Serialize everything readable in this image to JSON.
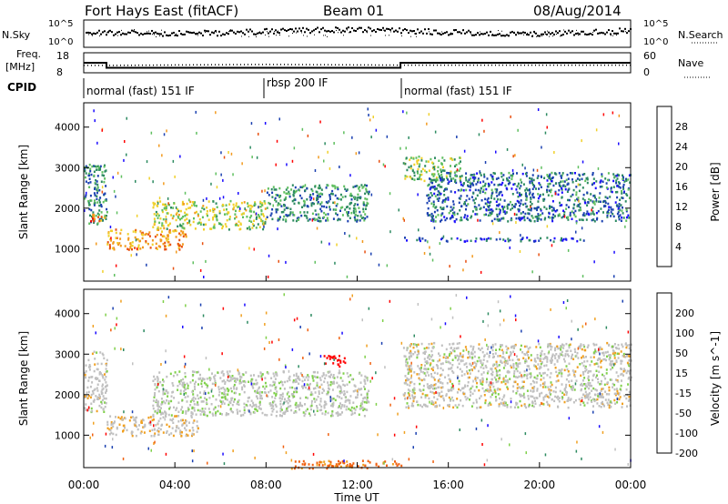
{
  "header": {
    "title": "Fort Hays East (fitACF)",
    "beam": "Beam 01",
    "date": "08/Aug/2014"
  },
  "noise_panel": {
    "left_label": "N.Sky",
    "left_ticks": [
      "10^5",
      "10^0"
    ],
    "right_label": "N.Search",
    "right_ticks": [
      "10^5",
      "10^0"
    ]
  },
  "freq_panel": {
    "left_label_1": "Freq.",
    "left_label_2": "[MHz]",
    "left_ticks": [
      "18",
      "8"
    ],
    "right_label": "Nave",
    "right_ticks": [
      "60",
      "0"
    ]
  },
  "cpid_panel": {
    "label": "CPID",
    "segments": [
      {
        "text": "normal (fast) 151 IF",
        "start_hour": 0.0
      },
      {
        "text": "rbsp 200 IF",
        "start_hour": 8.0
      },
      {
        "text": "normal (fast) 151 IF",
        "start_hour": 13.9
      }
    ]
  },
  "power_panel": {
    "ylabel": "Slant Range [km]",
    "yticks": [
      "4000",
      "3000",
      "2000",
      "1000"
    ],
    "colorbar_label": "Power [dB]",
    "colorbar_ticks": [
      "28",
      "24",
      "20",
      "16",
      "12",
      "8",
      "4"
    ],
    "colors": [
      "#1a0aff",
      "#1a40b0",
      "#2c8a60",
      "#5fbf5f",
      "#f0d02a",
      "#f29a1e",
      "#e85010",
      "#ff0000"
    ]
  },
  "velocity_panel": {
    "ylabel": "Slant Range [km]",
    "yticks": [
      "4000",
      "3000",
      "2000",
      "1000"
    ],
    "colorbar_label": "Velocity [m s^-1]",
    "colorbar_ticks": [
      "200",
      "100",
      "50",
      "15",
      "-15",
      "-50",
      "-100",
      "-200"
    ],
    "colors": [
      "#1a0aff",
      "#1a40b0",
      "#2c8a60",
      "#7fd04a",
      "#c0c0c0",
      "#f0a020",
      "#f06010",
      "#ff0000"
    ]
  },
  "xaxis": {
    "label": "Time UT",
    "ticks": [
      "00:00",
      "04:00",
      "08:00",
      "12:00",
      "16:00",
      "20:00",
      "00:00"
    ]
  },
  "chart_data": {
    "type": "heatmap",
    "title": "Fort Hays East (fitACF)",
    "xlabel": "Time UT",
    "ylabel": "Slant Range [km]",
    "xlim": [
      0,
      24
    ],
    "ylim": [
      200,
      4600
    ],
    "freq_series": {
      "name": "Freq.",
      "x": [
        0,
        1.0,
        1.0,
        8.0,
        8.0,
        13.9,
        13.9,
        24
      ],
      "values": [
        13,
        13,
        10.5,
        10.5,
        10.5,
        10.5,
        13,
        13
      ]
    },
    "nave_series": {
      "name": "Nave",
      "x": [
        0,
        1.0,
        8.0,
        13.9,
        24
      ],
      "values": [
        22,
        22,
        25,
        23,
        23
      ]
    },
    "power_echo_regions": [
      {
        "t0": 0.0,
        "t1": 1.0,
        "r0": 1600,
        "r1": 3100,
        "level_db": 10
      },
      {
        "t0": 0.0,
        "t1": 1.0,
        "r0": 1700,
        "r1": 1900,
        "level_db": 24
      },
      {
        "t0": 1.0,
        "t1": 4.5,
        "r0": 1000,
        "r1": 1500,
        "level_db": 22
      },
      {
        "t0": 3.0,
        "t1": 8.0,
        "r0": 1500,
        "r1": 2200,
        "level_db": 16
      },
      {
        "t0": 8.0,
        "t1": 12.5,
        "r0": 1700,
        "r1": 2600,
        "level_db": 10
      },
      {
        "t0": 14.0,
        "t1": 16.5,
        "r0": 2700,
        "r1": 3300,
        "level_db": 14
      },
      {
        "t0": 15.0,
        "t1": 24.0,
        "r0": 1700,
        "r1": 2900,
        "level_db": 8
      },
      {
        "t0": 14.0,
        "t1": 22.0,
        "r0": 1200,
        "r1": 1300,
        "level_db": 6
      }
    ],
    "velocity_echo_regions": [
      {
        "t0": 0.0,
        "t1": 1.0,
        "r0": 1600,
        "r1": 3100,
        "vel": 0
      },
      {
        "t0": 1.0,
        "t1": 5.0,
        "r0": 1000,
        "r1": 1500,
        "vel": -10
      },
      {
        "t0": 3.0,
        "t1": 12.5,
        "r0": 1500,
        "r1": 2600,
        "vel": 5
      },
      {
        "t0": 10.5,
        "t1": 11.5,
        "r0": 2700,
        "r1": 3000,
        "vel": -220
      },
      {
        "t0": 14.0,
        "t1": 24.0,
        "r0": 1700,
        "r1": 3300,
        "vel": 0
      },
      {
        "t0": 9.0,
        "t1": 14.0,
        "r0": 200,
        "r1": 400,
        "vel": -60
      }
    ]
  }
}
